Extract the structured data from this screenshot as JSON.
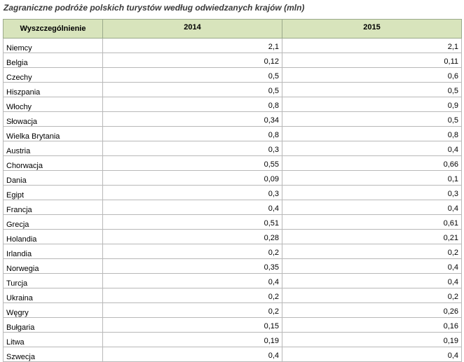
{
  "title": "Zagraniczne podróże polskich turystów według odwiedzanych krajów (mln)",
  "header": {
    "label": "Wyszczególnienie",
    "year1": "2014",
    "year2": "2015"
  },
  "rows": [
    {
      "country": "Niemcy",
      "v2014": "2,1",
      "v2015": "2,1"
    },
    {
      "country": "Belgia",
      "v2014": "0,12",
      "v2015": "0,11"
    },
    {
      "country": "Czechy",
      "v2014": "0,5",
      "v2015": "0,6"
    },
    {
      "country": "Hiszpania",
      "v2014": "0,5",
      "v2015": "0,5"
    },
    {
      "country": "Włochy",
      "v2014": "0,8",
      "v2015": "0,9"
    },
    {
      "country": "Słowacja",
      "v2014": "0,34",
      "v2015": "0,5"
    },
    {
      "country": "Wielka Brytania",
      "v2014": "0,8",
      "v2015": "0,8"
    },
    {
      "country": "Austria",
      "v2014": "0,3",
      "v2015": "0,4"
    },
    {
      "country": "Chorwacja",
      "v2014": "0,55",
      "v2015": "0,66"
    },
    {
      "country": "Dania",
      "v2014": "0,09",
      "v2015": "0,1"
    },
    {
      "country": "Egipt",
      "v2014": "0,3",
      "v2015": "0,3"
    },
    {
      "country": "Francja",
      "v2014": "0,4",
      "v2015": "0,4"
    },
    {
      "country": "Grecja",
      "v2014": "0,51",
      "v2015": "0,61"
    },
    {
      "country": "Holandia",
      "v2014": "0,28",
      "v2015": "0,21"
    },
    {
      "country": "Irlandia",
      "v2014": "0,2",
      "v2015": "0,2"
    },
    {
      "country": "Norwegia",
      "v2014": "0,35",
      "v2015": "0,4"
    },
    {
      "country": "Turcja",
      "v2014": "0,4",
      "v2015": "0,4"
    },
    {
      "country": "Ukraina",
      "v2014": "0,2",
      "v2015": "0,2"
    },
    {
      "country": "Węgry",
      "v2014": "0,2",
      "v2015": "0,26"
    },
    {
      "country": "Bułgaria",
      "v2014": "0,15",
      "v2015": "0,16"
    },
    {
      "country": "Litwa",
      "v2014": "0,19",
      "v2015": "0,19"
    },
    {
      "country": "Szwecja",
      "v2014": "0,4",
      "v2015": "0,4"
    }
  ]
}
